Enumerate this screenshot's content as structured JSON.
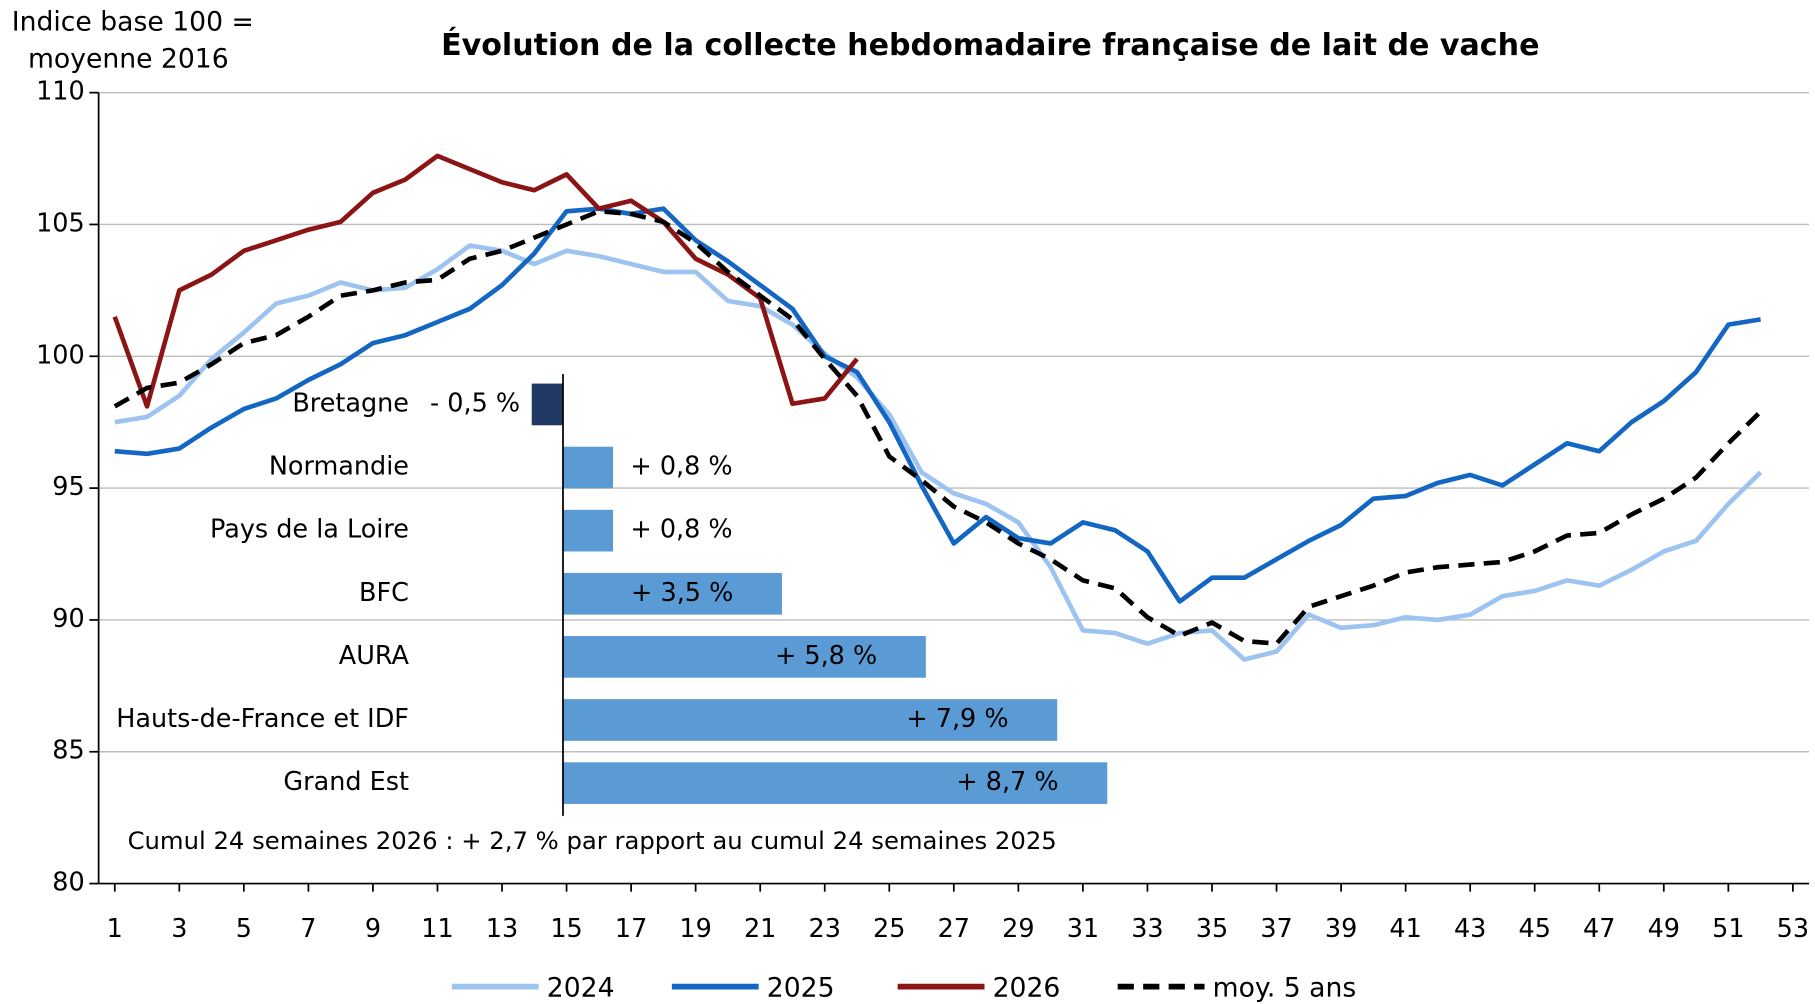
{
  "chart_data": [
    {
      "type": "line",
      "title": "Évolution de la collecte hebdomadaire  française de lait de vache",
      "ylabel": [
        "Indice base 100 =",
        "moyenne 2016"
      ],
      "x": [
        1,
        2,
        3,
        4,
        5,
        6,
        7,
        8,
        9,
        10,
        11,
        12,
        13,
        14,
        15,
        16,
        17,
        18,
        19,
        20,
        21,
        22,
        23,
        24,
        25,
        26,
        27,
        28,
        29,
        30,
        31,
        32,
        33,
        34,
        35,
        36,
        37,
        38,
        39,
        40,
        41,
        42,
        43,
        44,
        45,
        46,
        47,
        48,
        49,
        50,
        51,
        52
      ],
      "xlim": [
        0.5,
        53.5
      ],
      "xticks": [
        1,
        3,
        5,
        7,
        9,
        11,
        13,
        15,
        17,
        19,
        21,
        23,
        25,
        27,
        29,
        31,
        33,
        35,
        37,
        39,
        41,
        43,
        45,
        47,
        49,
        51,
        53
      ],
      "ylim": [
        80,
        110
      ],
      "yticks": [
        80,
        85,
        90,
        95,
        100,
        105,
        110
      ],
      "grid": true,
      "series": [
        {
          "name": "2024",
          "color": "#9dc3f0",
          "dash": false,
          "values": [
            97.5,
            97.7,
            98.5,
            99.9,
            100.9,
            102.0,
            102.3,
            102.8,
            102.5,
            102.6,
            103.3,
            104.2,
            104.0,
            103.5,
            104.0,
            103.8,
            103.5,
            103.2,
            103.2,
            102.1,
            101.9,
            101.2,
            100.1,
            99.2,
            97.8,
            95.6,
            94.8,
            94.4,
            93.7,
            92.0,
            89.6,
            89.5,
            89.1,
            89.5,
            89.6,
            88.5,
            88.8,
            90.2,
            89.7,
            89.8,
            90.1,
            90.0,
            90.2,
            90.9,
            91.1,
            91.5,
            91.3,
            91.9,
            92.6,
            93.0,
            94.4,
            95.6
          ]
        },
        {
          "name": "2025",
          "color": "#1466c3",
          "dash": false,
          "values": [
            96.4,
            96.3,
            96.5,
            97.3,
            98.0,
            98.4,
            99.1,
            99.7,
            100.5,
            100.8,
            101.3,
            101.8,
            102.7,
            103.9,
            105.5,
            105.6,
            105.4,
            105.6,
            104.4,
            103.6,
            102.7,
            101.8,
            100.0,
            99.4,
            97.5,
            95.1,
            92.9,
            93.9,
            93.1,
            92.9,
            93.7,
            93.4,
            92.6,
            90.7,
            91.6,
            91.6,
            92.3,
            93.0,
            93.6,
            94.6,
            94.7,
            95.2,
            95.5,
            95.1,
            95.9,
            96.7,
            96.4,
            97.5,
            98.3,
            99.4,
            101.2,
            101.4
          ]
        },
        {
          "name": "2026",
          "color": "#8b1414",
          "dash": false,
          "values": [
            101.5,
            98.1,
            102.5,
            103.1,
            104.0,
            104.4,
            104.8,
            105.1,
            106.2,
            106.7,
            107.6,
            107.1,
            106.6,
            106.3,
            106.9,
            105.6,
            105.9,
            105.1,
            103.7,
            103.1,
            102.2,
            98.2,
            98.4,
            99.9,
            null,
            null,
            null,
            null,
            null,
            null,
            null,
            null,
            null,
            null,
            null,
            null,
            null,
            null,
            null,
            null,
            null,
            null,
            null,
            null,
            null,
            null,
            null,
            null,
            null,
            null,
            null,
            null
          ]
        },
        {
          "name": "moy. 5 ans",
          "color": "#000000",
          "dash": true,
          "values": [
            98.1,
            98.8,
            99.0,
            99.7,
            100.5,
            100.8,
            101.5,
            102.3,
            102.5,
            102.8,
            102.9,
            103.7,
            104.0,
            104.5,
            105.0,
            105.5,
            105.4,
            105.1,
            104.3,
            103.2,
            102.3,
            101.4,
            99.9,
            98.5,
            96.2,
            95.3,
            94.3,
            93.7,
            92.9,
            92.3,
            91.5,
            91.2,
            90.1,
            89.4,
            89.9,
            89.2,
            89.1,
            90.5,
            90.9,
            91.3,
            91.8,
            92.0,
            92.1,
            92.2,
            92.6,
            93.2,
            93.3,
            94.0,
            94.6,
            95.4,
            96.7,
            97.9
          ]
        }
      ]
    },
    {
      "type": "bar",
      "orientation": "horizontal",
      "categories": [
        "Bretagne",
        "Normandie",
        "Pays de la Loire",
        "BFC",
        "AURA",
        "Hauts-de-France et IDF",
        "Grand Est"
      ],
      "values": [
        -0.5,
        0.8,
        0.8,
        3.5,
        5.8,
        7.9,
        8.7
      ],
      "value_labels": [
        "- 0,5 %",
        "+ 0,8 %",
        "+ 0,8 %",
        "+ 3,5 %",
        "+ 5,8 %",
        "+ 7,9 %",
        "+ 8,7 %"
      ],
      "colors": [
        "#1f3864",
        "#5b9bd5",
        "#5b9bd5",
        "#5b9bd5",
        "#5b9bd5",
        "#5b9bd5",
        "#5b9bd5"
      ],
      "annotation": "Cumul 24 semaines 2026 : +  2,7 %  par rapport au cumul 24 semaines 2025"
    }
  ]
}
